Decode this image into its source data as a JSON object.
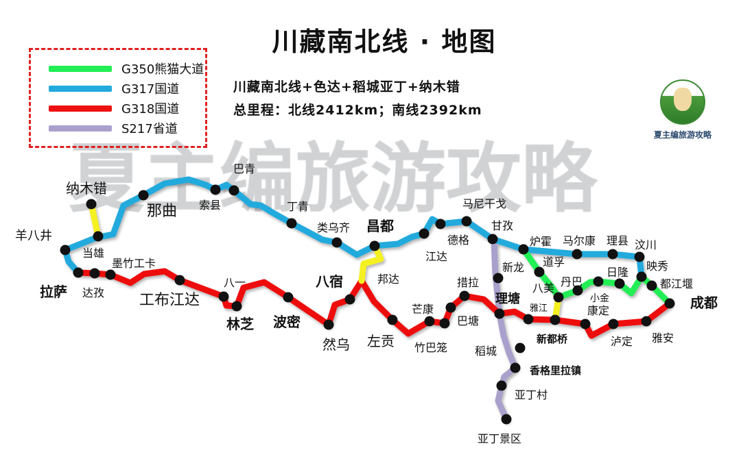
{
  "title": "川藏南北线 · 地图",
  "subtitle": {
    "line1": "川藏南北线+色达+稻城亚丁+纳木错",
    "line2": "总里程：北线2412km；南线2392km"
  },
  "legend": [
    {
      "label": "G350熊猫大道",
      "color": "#22ee55"
    },
    {
      "label": "G317国道",
      "color": "#22aadd"
    },
    {
      "label": "G318国道",
      "color": "#ee1111"
    },
    {
      "label": "S217省道",
      "color": "#aaa0cc"
    }
  ],
  "extra_route_color": "#f5f020",
  "watermark": "夏主编旅游攻略",
  "logo": {
    "text": "夏主编旅游攻略",
    "badge_text": "夏主编旅游攻略"
  },
  "places": [
    "纳木错",
    "羊八井",
    "当雄",
    "墨竹工卡",
    "拉萨",
    "达孜",
    "工布江达",
    "八一",
    "林芝",
    "波密",
    "然乌",
    "八宿",
    "左贡",
    "那曲",
    "索县",
    "巴青",
    "丁青",
    "类乌齐",
    "昌都",
    "邦达",
    "江达",
    "德格",
    "马尼干戈",
    "甘孜",
    "炉霍",
    "马尔康",
    "理县",
    "汶川",
    "新龙",
    "道孚",
    "八美",
    "丹巴",
    "小金",
    "日隆",
    "映秀",
    "都江堰",
    "成都",
    "理塘",
    "雅江",
    "措拉",
    "芒康",
    "巴塘",
    "竹巴笼",
    "新都桥",
    "康定",
    "泸定",
    "雅安",
    "稻城",
    "香格里拉镇",
    "亚丁村",
    "亚丁景区"
  ]
}
